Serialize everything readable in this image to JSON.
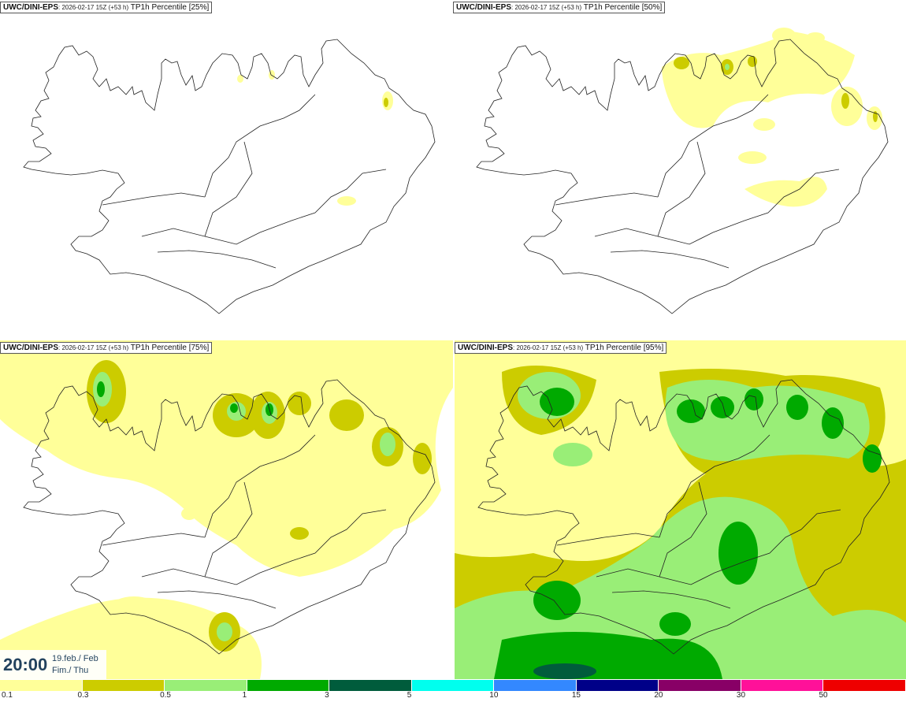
{
  "panels": [
    {
      "source": "UWC/DINI-EPS",
      "run": ": 2026-02-17 15Z (+53 h)",
      "product": " TP1h Percentile [25%]"
    },
    {
      "source": "UWC/DINI-EPS",
      "run": ": 2026-02-17 15Z (+53 h)",
      "product": " TP1h Percentile [50%]"
    },
    {
      "source": "UWC/DINI-EPS",
      "run": ": 2026-02-17 15Z (+53 h)",
      "product": " TP1h Percentile [75%]"
    },
    {
      "source": "UWC/DINI-EPS",
      "run": ": 2026-02-17 15Z (+53 h)",
      "product": " TP1h Percentile [95%]"
    }
  ],
  "valid_time": {
    "time": "20:00",
    "date_line1": "19.feb./ Feb",
    "date_line2": "Fim./ Thu"
  },
  "legend": {
    "colors": [
      "#ffff99",
      "#cccc00",
      "#99ee77",
      "#00aa00",
      "#005c3c",
      "#00ffee",
      "#3388ff",
      "#000088",
      "#880066",
      "#ff1199",
      "#ee0000"
    ],
    "labels": [
      "0.1",
      "0.3",
      "0.5",
      "1",
      "3",
      "5",
      "10",
      "15",
      "20",
      "30",
      "50"
    ]
  }
}
